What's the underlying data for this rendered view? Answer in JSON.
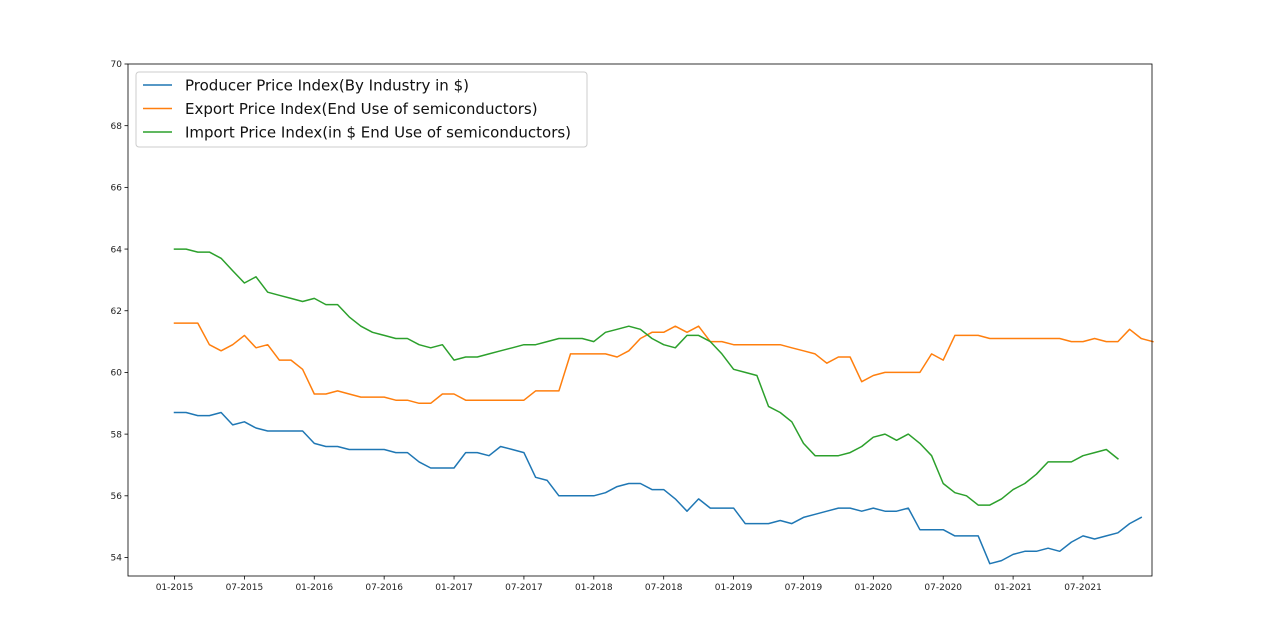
{
  "chart_data": {
    "type": "line",
    "title": "",
    "xlabel": "",
    "ylabel": "",
    "ylim": [
      53.4,
      70
    ],
    "y_ticks": [
      54,
      56,
      58,
      60,
      62,
      64,
      66,
      68,
      70
    ],
    "x_ticks": [
      "01-2015",
      "07-2015",
      "01-2016",
      "07-2016",
      "01-2017",
      "07-2017",
      "01-2018",
      "07-2018",
      "01-2019",
      "07-2019",
      "01-2020",
      "07-2020",
      "01-2021",
      "07-2021"
    ],
    "legend_position": "top-left",
    "grid": false,
    "series": [
      {
        "name": "Producer Price Index(By  Industry in $)",
        "color": "#1f77b4",
        "points": [
          [
            "2015-01",
            58.7
          ],
          [
            "2015-02",
            58.7
          ],
          [
            "2015-03",
            58.6
          ],
          [
            "2015-04",
            58.6
          ],
          [
            "2015-05",
            58.7
          ],
          [
            "2015-06",
            58.3
          ],
          [
            "2015-07",
            58.4
          ],
          [
            "2015-08",
            58.2
          ],
          [
            "2015-09",
            58.1
          ],
          [
            "2015-10",
            58.1
          ],
          [
            "2015-11",
            58.1
          ],
          [
            "2015-12",
            58.1
          ],
          [
            "2016-01",
            57.7
          ],
          [
            "2016-02",
            57.6
          ],
          [
            "2016-03",
            57.6
          ],
          [
            "2016-04",
            57.5
          ],
          [
            "2016-05",
            57.5
          ],
          [
            "2016-06",
            57.5
          ],
          [
            "2016-07",
            57.5
          ],
          [
            "2016-08",
            57.4
          ],
          [
            "2016-09",
            57.4
          ],
          [
            "2016-10",
            57.1
          ],
          [
            "2016-11",
            56.9
          ],
          [
            "2016-12",
            56.9
          ],
          [
            "2017-01",
            56.9
          ],
          [
            "2017-02",
            57.4
          ],
          [
            "2017-03",
            57.4
          ],
          [
            "2017-04",
            57.3
          ],
          [
            "2017-05",
            57.6
          ],
          [
            "2017-06",
            57.5
          ],
          [
            "2017-07",
            57.4
          ],
          [
            "2017-08",
            56.6
          ],
          [
            "2017-09",
            56.5
          ],
          [
            "2017-10",
            56.0
          ],
          [
            "2017-11",
            56.0
          ],
          [
            "2017-12",
            56.0
          ],
          [
            "2018-01",
            56.0
          ],
          [
            "2018-02",
            56.1
          ],
          [
            "2018-03",
            56.3
          ],
          [
            "2018-04",
            56.4
          ],
          [
            "2018-05",
            56.4
          ],
          [
            "2018-06",
            56.2
          ],
          [
            "2018-07",
            56.2
          ],
          [
            "2018-08",
            55.9
          ],
          [
            "2018-09",
            55.5
          ],
          [
            "2018-10",
            55.9
          ],
          [
            "2018-11",
            55.6
          ],
          [
            "2018-12",
            55.6
          ],
          [
            "2019-01",
            55.6
          ],
          [
            "2019-02",
            55.1
          ],
          [
            "2019-03",
            55.1
          ],
          [
            "2019-04",
            55.1
          ],
          [
            "2019-05",
            55.2
          ],
          [
            "2019-06",
            55.1
          ],
          [
            "2019-07",
            55.3
          ],
          [
            "2019-08",
            55.4
          ],
          [
            "2019-09",
            55.5
          ],
          [
            "2019-10",
            55.6
          ],
          [
            "2019-11",
            55.6
          ],
          [
            "2019-12",
            55.5
          ],
          [
            "2020-01",
            55.6
          ],
          [
            "2020-02",
            55.5
          ],
          [
            "2020-03",
            55.5
          ],
          [
            "2020-04",
            55.6
          ],
          [
            "2020-05",
            54.9
          ],
          [
            "2020-06",
            54.9
          ],
          [
            "2020-07",
            54.9
          ],
          [
            "2020-08",
            54.7
          ],
          [
            "2020-09",
            54.7
          ],
          [
            "2020-10",
            54.7
          ],
          [
            "2020-11",
            53.8
          ],
          [
            "2020-12",
            53.9
          ],
          [
            "2021-01",
            54.1
          ],
          [
            "2021-02",
            54.2
          ],
          [
            "2021-03",
            54.2
          ],
          [
            "2021-04",
            54.3
          ],
          [
            "2021-05",
            54.2
          ],
          [
            "2021-06",
            54.5
          ],
          [
            "2021-07",
            54.7
          ],
          [
            "2021-08",
            54.6
          ],
          [
            "2021-09",
            54.7
          ],
          [
            "2021-10",
            54.8
          ],
          [
            "2021-11",
            55.1
          ],
          [
            "2021-12",
            55.3
          ]
        ]
      },
      {
        "name": "Export Price Index(End Use of semiconductors)",
        "color": "#ff7f0e",
        "points": [
          [
            "2015-01",
            61.6
          ],
          [
            "2015-02",
            61.6
          ],
          [
            "2015-03",
            61.6
          ],
          [
            "2015-04",
            60.9
          ],
          [
            "2015-05",
            60.7
          ],
          [
            "2015-06",
            60.9
          ],
          [
            "2015-07",
            61.2
          ],
          [
            "2015-08",
            60.8
          ],
          [
            "2015-09",
            60.9
          ],
          [
            "2015-10",
            60.4
          ],
          [
            "2015-11",
            60.4
          ],
          [
            "2015-12",
            60.1
          ],
          [
            "2016-01",
            59.3
          ],
          [
            "2016-02",
            59.3
          ],
          [
            "2016-03",
            59.4
          ],
          [
            "2016-04",
            59.3
          ],
          [
            "2016-05",
            59.2
          ],
          [
            "2016-06",
            59.2
          ],
          [
            "2016-07",
            59.2
          ],
          [
            "2016-08",
            59.1
          ],
          [
            "2016-09",
            59.1
          ],
          [
            "2016-10",
            59.0
          ],
          [
            "2016-11",
            59.0
          ],
          [
            "2016-12",
            59.3
          ],
          [
            "2017-01",
            59.3
          ],
          [
            "2017-02",
            59.1
          ],
          [
            "2017-03",
            59.1
          ],
          [
            "2017-04",
            59.1
          ],
          [
            "2017-05",
            59.1
          ],
          [
            "2017-06",
            59.1
          ],
          [
            "2017-07",
            59.1
          ],
          [
            "2017-08",
            59.4
          ],
          [
            "2017-09",
            59.4
          ],
          [
            "2017-10",
            59.4
          ],
          [
            "2017-11",
            60.6
          ],
          [
            "2017-12",
            60.6
          ],
          [
            "2018-01",
            60.6
          ],
          [
            "2018-02",
            60.6
          ],
          [
            "2018-03",
            60.5
          ],
          [
            "2018-04",
            60.7
          ],
          [
            "2018-05",
            61.1
          ],
          [
            "2018-06",
            61.3
          ],
          [
            "2018-07",
            61.3
          ],
          [
            "2018-08",
            61.5
          ],
          [
            "2018-09",
            61.3
          ],
          [
            "2018-10",
            61.5
          ],
          [
            "2018-11",
            61.0
          ],
          [
            "2018-12",
            61.0
          ],
          [
            "2019-01",
            60.9
          ],
          [
            "2019-02",
            60.9
          ],
          [
            "2019-03",
            60.9
          ],
          [
            "2019-04",
            60.9
          ],
          [
            "2019-05",
            60.9
          ],
          [
            "2019-06",
            60.8
          ],
          [
            "2019-07",
            60.7
          ],
          [
            "2019-08",
            60.6
          ],
          [
            "2019-09",
            60.3
          ],
          [
            "2019-10",
            60.5
          ],
          [
            "2019-11",
            60.5
          ],
          [
            "2019-12",
            59.7
          ],
          [
            "2020-01",
            59.9
          ],
          [
            "2020-02",
            60.0
          ],
          [
            "2020-03",
            60.0
          ],
          [
            "2020-04",
            60.0
          ],
          [
            "2020-05",
            60.0
          ],
          [
            "2020-06",
            60.6
          ],
          [
            "2020-07",
            60.4
          ],
          [
            "2020-08",
            61.2
          ],
          [
            "2020-09",
            61.2
          ],
          [
            "2020-10",
            61.2
          ],
          [
            "2020-11",
            61.1
          ],
          [
            "2020-12",
            61.1
          ],
          [
            "2021-01",
            61.1
          ],
          [
            "2021-02",
            61.1
          ],
          [
            "2021-03",
            61.1
          ],
          [
            "2021-04",
            61.1
          ],
          [
            "2021-05",
            61.1
          ],
          [
            "2021-06",
            61.0
          ],
          [
            "2021-07",
            61.0
          ],
          [
            "2021-08",
            61.1
          ],
          [
            "2021-09",
            61.0
          ],
          [
            "2021-10",
            61.0
          ],
          [
            "2021-11",
            61.4
          ],
          [
            "2021-12",
            61.1
          ],
          [
            "2022-01",
            61.0
          ]
        ]
      },
      {
        "name": "Import Price Index(in $ End Use of semiconductors)",
        "color": "#2ca02c",
        "points": [
          [
            "2015-01",
            64.0
          ],
          [
            "2015-02",
            64.0
          ],
          [
            "2015-03",
            63.9
          ],
          [
            "2015-04",
            63.9
          ],
          [
            "2015-05",
            63.7
          ],
          [
            "2015-06",
            63.3
          ],
          [
            "2015-07",
            62.9
          ],
          [
            "2015-08",
            63.1
          ],
          [
            "2015-09",
            62.6
          ],
          [
            "2015-10",
            62.5
          ],
          [
            "2015-11",
            62.4
          ],
          [
            "2015-12",
            62.3
          ],
          [
            "2016-01",
            62.4
          ],
          [
            "2016-02",
            62.2
          ],
          [
            "2016-03",
            62.2
          ],
          [
            "2016-04",
            61.8
          ],
          [
            "2016-05",
            61.5
          ],
          [
            "2016-06",
            61.3
          ],
          [
            "2016-07",
            61.2
          ],
          [
            "2016-08",
            61.1
          ],
          [
            "2016-09",
            61.1
          ],
          [
            "2016-10",
            60.9
          ],
          [
            "2016-11",
            60.8
          ],
          [
            "2016-12",
            60.9
          ],
          [
            "2017-01",
            60.4
          ],
          [
            "2017-02",
            60.5
          ],
          [
            "2017-03",
            60.5
          ],
          [
            "2017-04",
            60.6
          ],
          [
            "2017-05",
            60.7
          ],
          [
            "2017-06",
            60.8
          ],
          [
            "2017-07",
            60.9
          ],
          [
            "2017-08",
            60.9
          ],
          [
            "2017-09",
            61.0
          ],
          [
            "2017-10",
            61.1
          ],
          [
            "2017-11",
            61.1
          ],
          [
            "2017-12",
            61.1
          ],
          [
            "2018-01",
            61.0
          ],
          [
            "2018-02",
            61.3
          ],
          [
            "2018-03",
            61.4
          ],
          [
            "2018-04",
            61.5
          ],
          [
            "2018-05",
            61.4
          ],
          [
            "2018-06",
            61.1
          ],
          [
            "2018-07",
            60.9
          ],
          [
            "2018-08",
            60.8
          ],
          [
            "2018-09",
            61.2
          ],
          [
            "2018-10",
            61.2
          ],
          [
            "2018-11",
            61.0
          ],
          [
            "2018-12",
            60.6
          ],
          [
            "2019-01",
            60.1
          ],
          [
            "2019-02",
            60.0
          ],
          [
            "2019-03",
            59.9
          ],
          [
            "2019-04",
            58.9
          ],
          [
            "2019-05",
            58.7
          ],
          [
            "2019-06",
            58.4
          ],
          [
            "2019-07",
            57.7
          ],
          [
            "2019-08",
            57.3
          ],
          [
            "2019-09",
            57.3
          ],
          [
            "2019-10",
            57.3
          ],
          [
            "2019-11",
            57.4
          ],
          [
            "2019-12",
            57.6
          ],
          [
            "2020-01",
            57.9
          ],
          [
            "2020-02",
            58.0
          ],
          [
            "2020-03",
            57.8
          ],
          [
            "2020-04",
            58.0
          ],
          [
            "2020-05",
            57.7
          ],
          [
            "2020-06",
            57.3
          ],
          [
            "2020-07",
            56.4
          ],
          [
            "2020-08",
            56.1
          ],
          [
            "2020-09",
            56.0
          ],
          [
            "2020-10",
            55.7
          ],
          [
            "2020-11",
            55.7
          ],
          [
            "2020-12",
            55.9
          ],
          [
            "2021-01",
            56.2
          ],
          [
            "2021-02",
            56.4
          ],
          [
            "2021-03",
            56.7
          ],
          [
            "2021-04",
            57.1
          ],
          [
            "2021-05",
            57.1
          ],
          [
            "2021-06",
            57.1
          ],
          [
            "2021-07",
            57.3
          ],
          [
            "2021-08",
            57.4
          ],
          [
            "2021-09",
            57.5
          ],
          [
            "2021-10",
            57.2
          ]
        ]
      }
    ]
  }
}
